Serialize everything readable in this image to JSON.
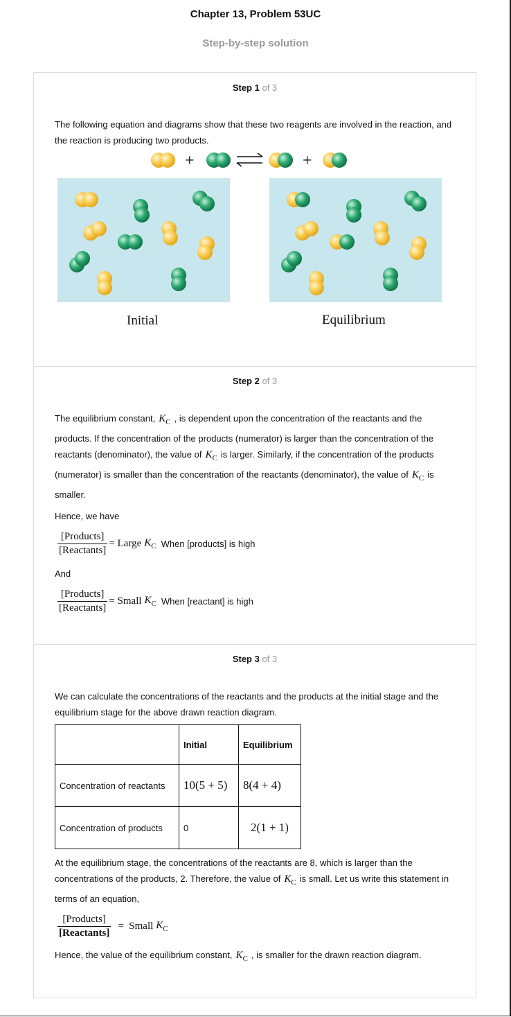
{
  "header": {
    "title": "Chapter 13, Problem 53UC",
    "subtitle": "Step-by-step solution"
  },
  "steps": [
    {
      "label": "Step 1",
      "of": "of 3",
      "text": "The following equation and diagrams show that these two reagents are involved in the reaction, and the reaction is producing two products.",
      "diagram": {
        "initial_label": "Initial",
        "equilibrium_label": "Equilibrium",
        "colors": {
          "yellow": "#f7c84a",
          "green": "#1f9a63",
          "box": "#c8e6ee"
        }
      }
    },
    {
      "label": "Step 2",
      "of": "of 3",
      "p1a": "The equilibrium constant,",
      "p1b": ", is dependent upon the concentration of the reactants and the products. If the concentration of the products (numerator) is larger than the concentration of the reactants (denominator), the value of",
      "p1c": "is larger. Similarly, if the concentration of the products (numerator) is smaller than the concentration of the reactants (denominator), the value of",
      "p1d": "is smaller.",
      "hence": "Hence, we have",
      "and": "And",
      "eq1": {
        "num": "[Products]",
        "den": "[Reactants]",
        "rhs": "= Large",
        "note": "When [products] is high"
      },
      "eq2": {
        "num": "[Products]",
        "den": "[Reactants]",
        "rhs": "= Small",
        "note": "When [reactant] is high"
      }
    },
    {
      "label": "Step 3",
      "of": "of 3",
      "p1": "We can calculate the concentrations of the reactants and the products at the initial stage and the equilibrium stage for the above drawn reaction diagram.",
      "table": {
        "headers": [
          "",
          "Initial",
          "Equilibrium"
        ],
        "rows": [
          [
            "Concentration of reactants",
            "10(5 + 5)",
            "8(4 + 4)"
          ],
          [
            "Concentration of products",
            "0",
            "2(1 + 1)"
          ]
        ]
      },
      "p2a": "At the equilibrium stage, the concentrations of the reactants are 8, which is larger than the concentrations of the products, 2. Therefore, the value of",
      "p2b": "is small. Let us write this statement in terms of an equation,",
      "eq": {
        "num": "[Products]",
        "den": "[Reactants]",
        "rhs": "=  Small"
      },
      "p3a": "Hence, the value of the equilibrium constant,",
      "p3b": ", is smaller for the drawn reaction diagram."
    }
  ]
}
